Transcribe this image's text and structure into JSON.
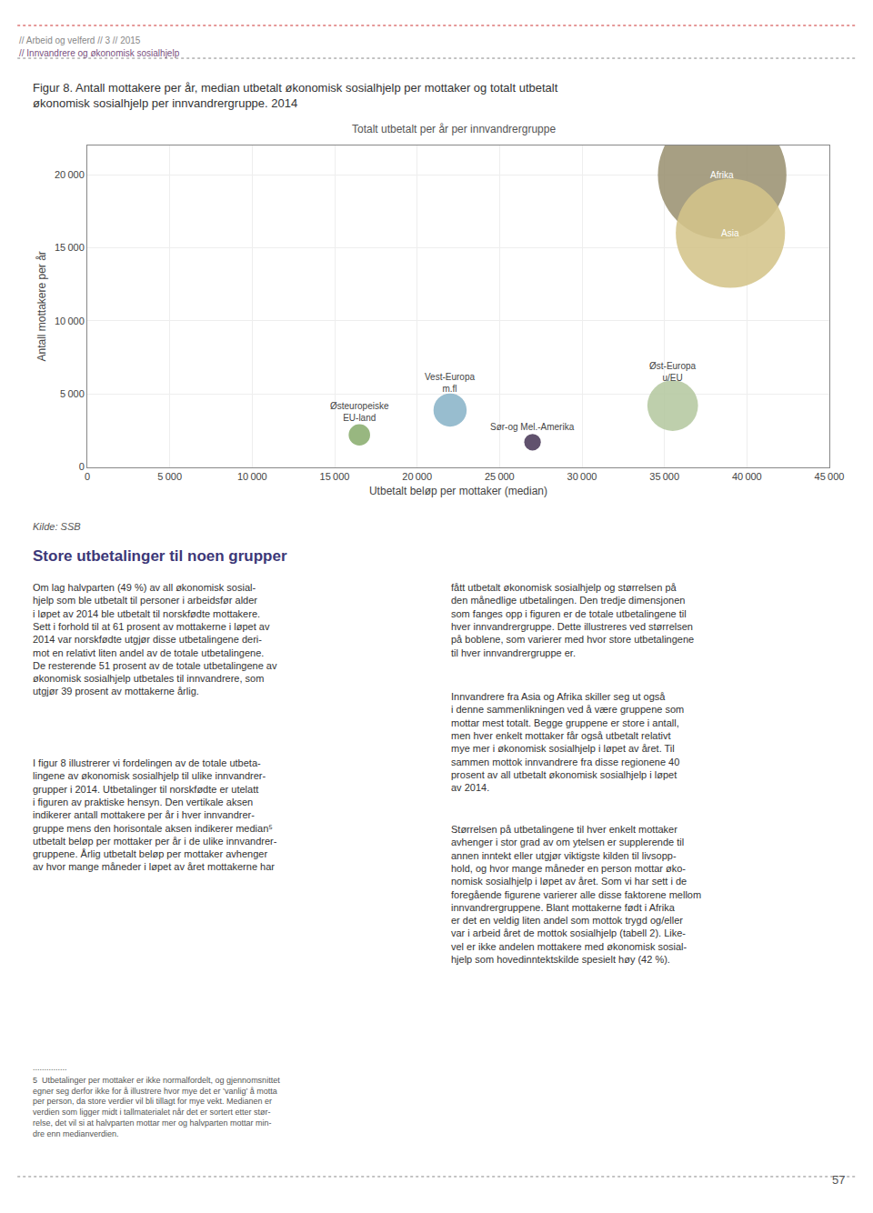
{
  "chart_data": {
    "type": "bubble",
    "title": "Totalt utbetalt per år per innvandrergruppe",
    "xlabel": "Utbetalt beløp per mottaker (median)",
    "ylabel": "Antall mottakere per år",
    "series": [
      {
        "name": "Afrika",
        "color": "#9b9272",
        "x": [
          38500
        ],
        "values": [
          20000
        ],
        "size": [
          180000
        ]
      },
      {
        "name": "Asia",
        "color": "#d4c48a",
        "x": [
          39000
        ],
        "values": [
          16000
        ],
        "size": [
          130000
        ]
      },
      {
        "name": "Øst-Europa\nu/EU",
        "color": "#b5c8a0",
        "x": [
          35500
        ],
        "values": [
          4200
        ],
        "size": [
          28000
        ]
      },
      {
        "name": "Østeuropeiske\nEU-land",
        "color": "#8aad6e",
        "x": [
          16500
        ],
        "values": [
          2200
        ],
        "size": [
          5000
        ]
      },
      {
        "name": "Vest-Europa\nm.fl",
        "color": "#8ab4c8",
        "x": [
          22000
        ],
        "values": [
          3900
        ],
        "size": [
          12000
        ]
      },
      {
        "name": "Sør-og Mel.-Amerika",
        "color": "#4b3a5a",
        "x": [
          27000
        ],
        "values": [
          1700
        ],
        "size": [
          3000
        ]
      }
    ],
    "xlim": [
      0,
      45000
    ],
    "ylim": [
      0,
      22000
    ],
    "xticks": [
      0,
      {
        "value": 5000,
        "label": "5 000"
      },
      {
        "value": 10000,
        "label": "10 000"
      },
      {
        "value": 15000,
        "label": "15 000"
      },
      {
        "value": 20000,
        "label": "20 000"
      },
      {
        "value": 25000,
        "label": "25 000"
      },
      {
        "value": 30000,
        "label": "30 000"
      },
      {
        "value": 35000,
        "label": "35 000"
      },
      {
        "value": 40000,
        "label": "40 000"
      },
      {
        "value": 45000,
        "label": "45 000"
      }
    ],
    "yticks": [
      0,
      {
        "value": 5000,
        "label": "5 000"
      },
      {
        "value": 10000,
        "label": "10 000"
      },
      {
        "value": 15000,
        "label": "15 000"
      },
      {
        "value": 20000,
        "label": "20 000"
      }
    ],
    "grid": true,
    "annotations": [
      "// Arbeid og velferd // 3 // 2015",
      "// Innvandrere og økonomisk sosialhjelp",
      "Figur 8. Antall mottakere per år, median utbetalt økonomisk sosialhjelp per mottaker og totalt utbetalt\nøkonomisk sosialhjelp per innvandrergruppe. 2014",
      "Kilde: SSB",
      "Store utbetalinger til noen grupper",
      "Om lag halvparten (49 %) av all økonomisk sosial-\nhjelp som ble utbetalt til personer i arbeidsfør alder\ni løpet av 2014 ble utbetalt til norskfødte mottakere.\nSett i forhold til at 61 prosent av mottakerne i løpet av\n2014 var norskfødte utgjør disse utbetalingene deri-\nmot en relativt liten andel av de totale utbetalingene.\nDe resterende 51 prosent av de totale utbetalingene av\nøkonomisk sosialhjelp utbetales til innvandrere, som\nutgjør 39 prosent av mottakerne årlig.",
      "I figur 8 illustrerer vi fordelingen av de totale utbeta-\nlingene av økonomisk sosialhjelp til ulike innvandrer-\ngrupper i 2014. Utbetalinger til norskfødte er utelatt\ni figuren av praktiske hensyn. Den vertikale aksen\nindikerer antall mottakere per år i hver innvandrer-\ngruppe mens den horisontale aksen indikerer median⁵\nutbetalt beløp per mottaker per år i de ulike innvandrer-\ngruppene. Årlig utbetalt beløp per mottaker avhenger\nav hvor mange måneder i løpet av året mottakerne har",
      "fått utbetalt økonomisk sosialhjelp og størrelsen på\nden månedlige utbetalingen. Den tredje dimensjonen\nsom fanges opp i figuren er de totale utbetalingene til\nhver innvandrergruppe. Dette illustreres ved størrelsen\npå boblene, som varierer med hvor store utbetalingene\ntil hver innvandrergruppe er.",
      "Innvandrere fra Asia og Afrika skiller seg ut også\ni denne sammenlikningen ved å være gruppene som\nmottar mest totalt. Begge gruppene er store i antall,\nmen hver enkelt mottaker får også utbetalt relativt\nmye mer i økonomisk sosialhjelp i løpet av året. Til\nsammen mottok innvandrere fra disse regionene 40\nprosent av all utbetalt økonomisk sosialhjelp i løpet\nav 2014.",
      "Størrelsen på utbetalingene til hver enkelt mottaker\navhenger i stor grad av om ytelsen er supplerende til\nannen inntekt eller utgjør viktigste kilden til livsopp-\nhold, og hvor mange måneder en person mottar øko-\nnomisk sosialhjelp i løpet av året. Som vi har sett i de\nforegående figurene varierer alle disse faktorene mellom\ninnvandrergruppene. Blant mottakerne født i Afrika\ner det en veldig liten andel som mottok trygd og/eller\nvar i arbeid året de mottok sosialhjelp (tabell 2). Like-\nvel er ikke andelen mottakere med økonomisk sosial-\nhjelp som hovedinntektskilde spesielt høy (42 %).",
      "...............",
      "5  Utbetalinger per mottaker er ikke normalfordelt, og gjennomsnittet\negner seg derfor ikke for å illustrere hvor mye det er ’vanlig’ å motta\nper person, da store verdier vil bli tillagt for mye vekt. Medianen er\nverdien som ligger midt i tallmaterialet når det er sortert etter stør-\nrelse, det vil si at halvparten mottar mer og halvparten mottar min-\ndre enn medianverdien.",
      "57"
    ]
  }
}
